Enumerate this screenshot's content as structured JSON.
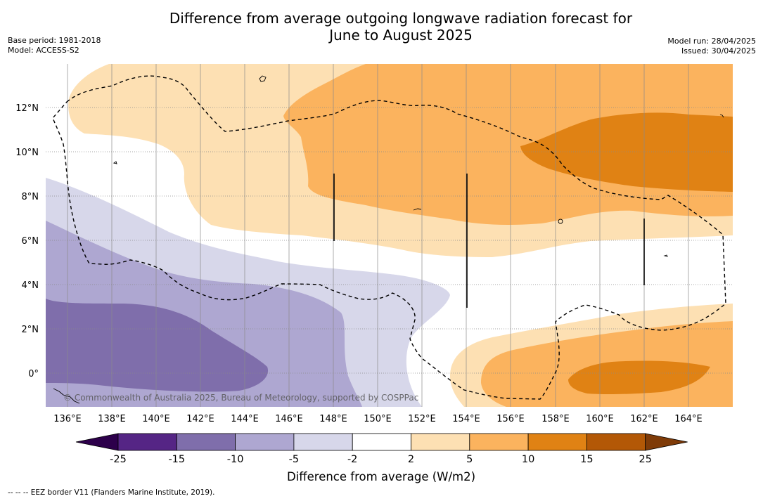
{
  "title_line1": "Difference from average outgoing longwave radiation forecast for",
  "title_line2": "June to August 2025",
  "meta_left": [
    "Base period: 1981-2018",
    "Model: ACCESS-S2"
  ],
  "meta_right": [
    "Model run: 28/04/2025",
    "Issued: 30/04/2025"
  ],
  "copyright": "© Commonwealth of Australia 2025, Bureau of Meteorology, supported by COSPPac",
  "footnote": "--  --  -- EEZ border V11 (Flanders Marine Institute, 2019).",
  "axes": {
    "x_ticks": [
      "136°E",
      "138°E",
      "140°E",
      "142°E",
      "144°E",
      "146°E",
      "148°E",
      "150°E",
      "152°E",
      "154°E",
      "156°E",
      "158°E",
      "160°E",
      "162°E",
      "164°E"
    ],
    "y_ticks": [
      "12°N",
      "10°N",
      "8°N",
      "6°N",
      "4°N",
      "2°N",
      "0°"
    ]
  },
  "colorbar": {
    "title": "Difference from average (W/m2)",
    "tick_labels": [
      "-25",
      "-15",
      "-10",
      "-5",
      "-2",
      "2",
      "5",
      "10",
      "15",
      "25"
    ],
    "colors": [
      "#552585",
      "#7f6eab",
      "#aea7d1",
      "#d7d7ea",
      "#ffffff",
      "#fde0b3",
      "#fbb35e",
      "#e08214",
      "#b35806"
    ],
    "under_color": "#2d004b",
    "over_color": "#7f3b08"
  },
  "palette": {
    "gridline": "#8a8a8a",
    "eez_border": "#000000"
  }
}
